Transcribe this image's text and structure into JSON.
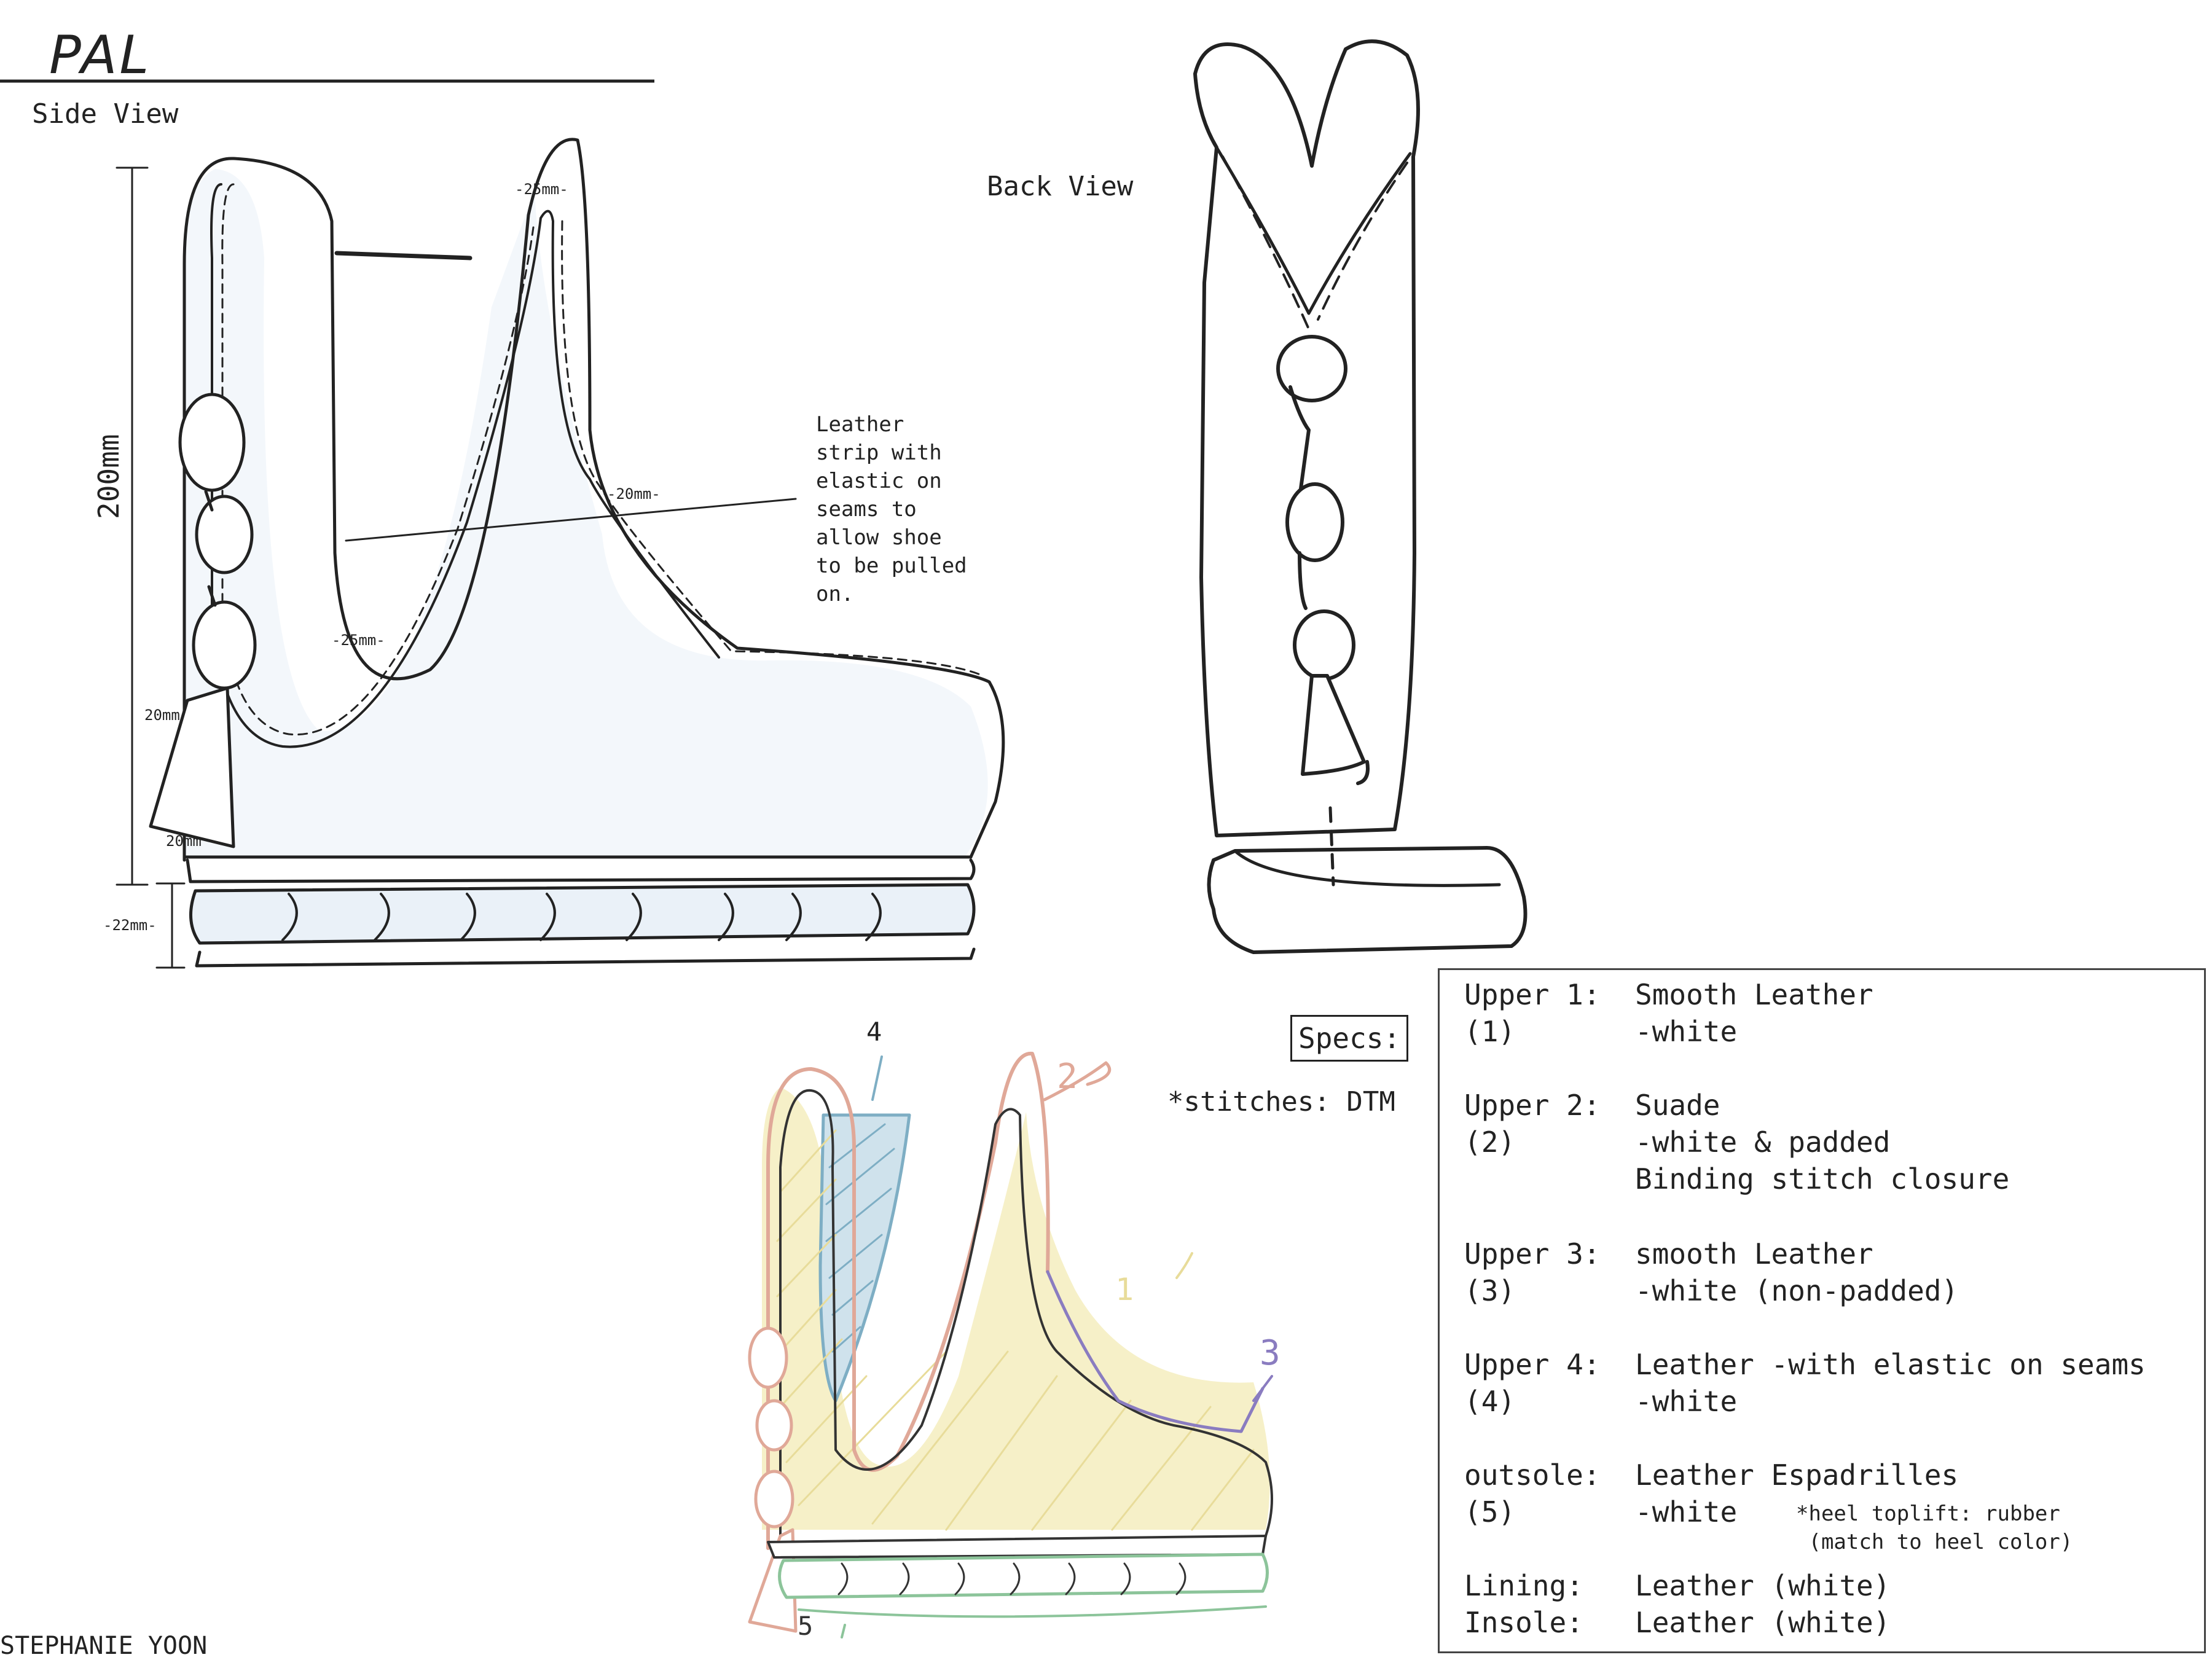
{
  "title": "PAL",
  "side_view_label": "Side View",
  "back_view_label": "Back View",
  "author": "STEPHANIE YOON",
  "dimensions": {
    "height": "200mm",
    "top_strap": "-25mm-",
    "mid_strap": "-20mm-",
    "lower_strap": "-25mm-",
    "heel_tab": "20mm",
    "heel_bottom": "20mm",
    "sole": "-22mm-"
  },
  "callout": "Leather\nstrip with\nelastic on\nseams to\nallow shoe\nto be pulled\non.",
  "specs_heading": "Specs:",
  "stitches_note": "*stitches: DTM",
  "part_numbers": {
    "p1": "1",
    "p2": "2",
    "p3": "3",
    "p4": "4",
    "p5": "5"
  },
  "part_colors": {
    "p1": "#e8dc9a",
    "p2": "#e0a898",
    "p3": "#8a7cc0",
    "p4": "#7eaec4",
    "p5": "#8cc49a"
  },
  "spec_rows": [
    {
      "key": "Upper 1:\n(1)",
      "value": "Smooth Leather\n-white"
    },
    {
      "key": "Upper 2:\n(2)",
      "value": "Suade\n-white & padded\nBinding stitch closure"
    },
    {
      "key": "Upper 3:\n(3)",
      "value": "smooth Leather\n-white (non-padded)"
    },
    {
      "key": "Upper 4:\n(4)",
      "value": "Leather -with elastic on seams\n-white"
    },
    {
      "key": "outsole:\n(5)",
      "value": "Leather Espadrilles\n-white"
    },
    {
      "key": "Lining:\nInsole:",
      "value": "Leather (white)\nLeather (white)"
    }
  ],
  "heel_note": "*heel toplift: rubber\n (match to heel color)"
}
